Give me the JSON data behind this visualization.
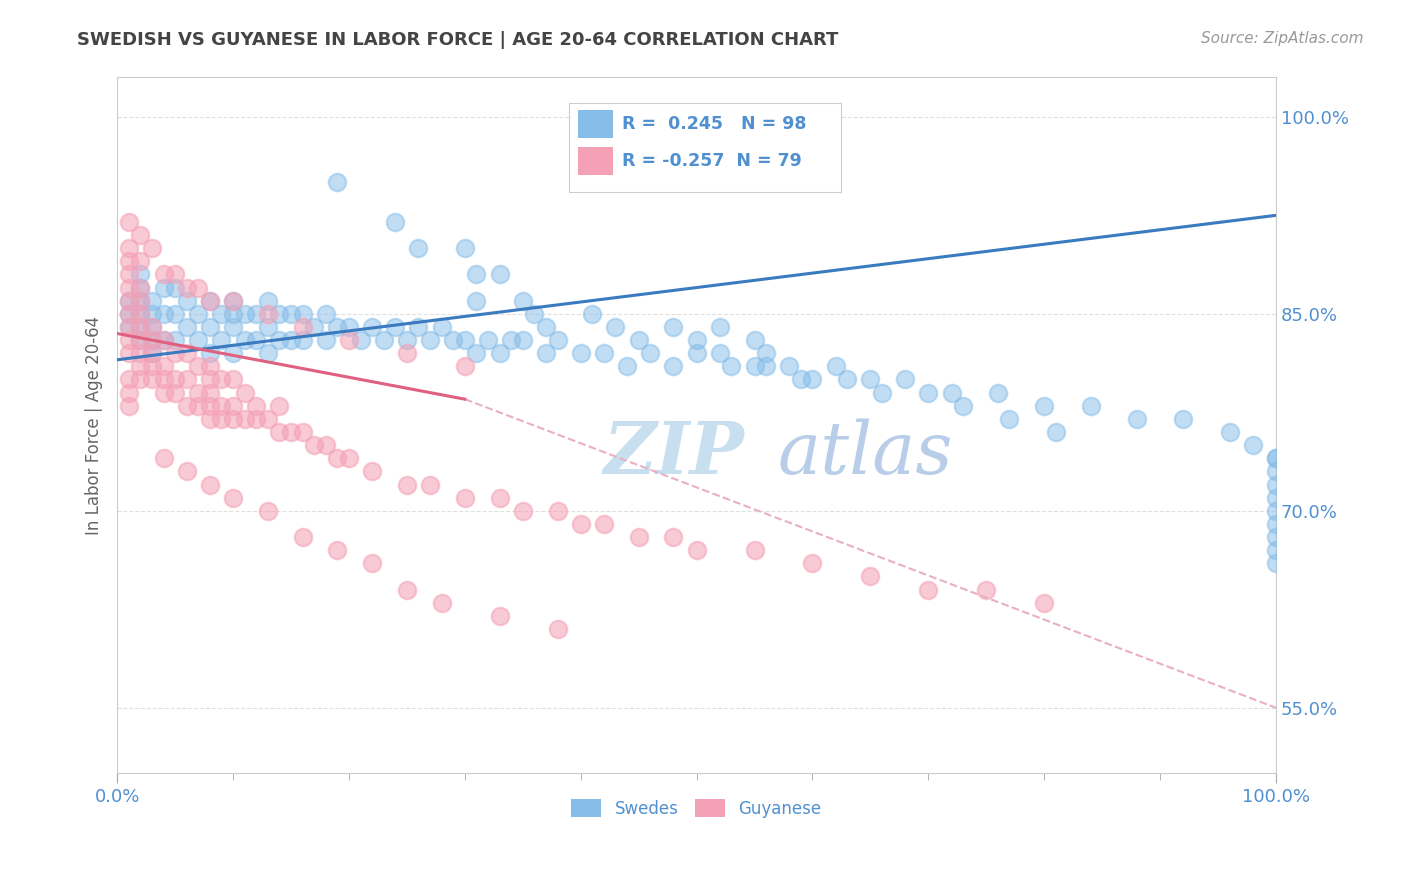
{
  "title": "SWEDISH VS GUYANESE IN LABOR FORCE | AGE 20-64 CORRELATION CHART",
  "source": "Source: ZipAtlas.com",
  "ylabel": "In Labor Force | Age 20-64",
  "xlim": [
    0.0,
    1.0
  ],
  "ylim": [
    0.5,
    1.03
  ],
  "x_tick_labels": [
    "0.0%",
    "100.0%"
  ],
  "y_ticks": [
    0.55,
    0.7,
    0.85,
    1.0
  ],
  "y_tick_labels": [
    "55.0%",
    "70.0%",
    "85.0%",
    "100.0%"
  ],
  "r_swedish": 0.245,
  "n_swedish": 98,
  "r_guyanese": -0.257,
  "n_guyanese": 79,
  "swedish_color": "#85bce8",
  "guyanese_color": "#f4a0b5",
  "trend_swedish_color": "#3a7abf",
  "trend_guyanese_color": "#e06080",
  "trend_dashed_color": "#e8b0c0",
  "watermark_zip": "ZIP",
  "watermark_atlas": "atlas",
  "watermark_color": "#c8dff0",
  "background_color": "#ffffff",
  "grid_color": "#e0e0e0",
  "grid_dashed_color": "#e8d0d8",
  "title_color": "#444444",
  "tick_label_color": "#5090d0",
  "legend_r_color": "#5090d0",
  "swedish_x": [
    0.01,
    0.01,
    0.01,
    0.02,
    0.02,
    0.02,
    0.02,
    0.02,
    0.02,
    0.03,
    0.03,
    0.03,
    0.03,
    0.03,
    0.04,
    0.04,
    0.04,
    0.05,
    0.05,
    0.05,
    0.06,
    0.06,
    0.07,
    0.07,
    0.08,
    0.08,
    0.08,
    0.09,
    0.09,
    0.1,
    0.1,
    0.1,
    0.1,
    0.11,
    0.11,
    0.12,
    0.12,
    0.13,
    0.13,
    0.13,
    0.14,
    0.14,
    0.15,
    0.15,
    0.16,
    0.16,
    0.17,
    0.18,
    0.18,
    0.19,
    0.2,
    0.21,
    0.22,
    0.23,
    0.24,
    0.25,
    0.26,
    0.27,
    0.28,
    0.29,
    0.3,
    0.31,
    0.32,
    0.33,
    0.34,
    0.35,
    0.37,
    0.38,
    0.4,
    0.42,
    0.44,
    0.46,
    0.48,
    0.5,
    0.53,
    0.56,
    0.59,
    0.62,
    0.65,
    0.68,
    0.72,
    0.76,
    0.8,
    0.84,
    0.88,
    0.92,
    0.96,
    0.98,
    1.0,
    1.0,
    1.0,
    1.0,
    1.0,
    1.0,
    1.0,
    1.0,
    1.0,
    1.0
  ],
  "swedish_y": [
    0.84,
    0.85,
    0.86,
    0.83,
    0.84,
    0.85,
    0.86,
    0.87,
    0.88,
    0.82,
    0.83,
    0.84,
    0.85,
    0.86,
    0.83,
    0.85,
    0.87,
    0.83,
    0.85,
    0.87,
    0.84,
    0.86,
    0.83,
    0.85,
    0.82,
    0.84,
    0.86,
    0.83,
    0.85,
    0.82,
    0.84,
    0.85,
    0.86,
    0.83,
    0.85,
    0.83,
    0.85,
    0.82,
    0.84,
    0.86,
    0.83,
    0.85,
    0.83,
    0.85,
    0.83,
    0.85,
    0.84,
    0.83,
    0.85,
    0.84,
    0.84,
    0.83,
    0.84,
    0.83,
    0.84,
    0.83,
    0.84,
    0.83,
    0.84,
    0.83,
    0.83,
    0.82,
    0.83,
    0.82,
    0.83,
    0.83,
    0.82,
    0.83,
    0.82,
    0.82,
    0.81,
    0.82,
    0.81,
    0.82,
    0.81,
    0.81,
    0.8,
    0.81,
    0.8,
    0.8,
    0.79,
    0.79,
    0.78,
    0.78,
    0.77,
    0.77,
    0.76,
    0.75,
    0.74,
    0.74,
    0.73,
    0.72,
    0.71,
    0.7,
    0.69,
    0.68,
    0.67,
    0.66
  ],
  "swedish_outlier_x": [
    0.19,
    0.24,
    0.26,
    0.3,
    0.31,
    0.31,
    0.33,
    0.35,
    0.36,
    0.37,
    0.41,
    0.43,
    0.45,
    0.48,
    0.5,
    0.52,
    0.52,
    0.55,
    0.55,
    0.56,
    0.58,
    0.6,
    0.63,
    0.66,
    0.7,
    0.73,
    0.77,
    0.81
  ],
  "swedish_outlier_y": [
    0.95,
    0.92,
    0.9,
    0.9,
    0.88,
    0.86,
    0.88,
    0.86,
    0.85,
    0.84,
    0.85,
    0.84,
    0.83,
    0.84,
    0.83,
    0.84,
    0.82,
    0.83,
    0.81,
    0.82,
    0.81,
    0.8,
    0.8,
    0.79,
    0.79,
    0.78,
    0.77,
    0.76
  ],
  "guyanese_x": [
    0.01,
    0.01,
    0.01,
    0.01,
    0.01,
    0.01,
    0.01,
    0.01,
    0.01,
    0.01,
    0.01,
    0.02,
    0.02,
    0.02,
    0.02,
    0.02,
    0.02,
    0.02,
    0.02,
    0.03,
    0.03,
    0.03,
    0.03,
    0.03,
    0.04,
    0.04,
    0.04,
    0.04,
    0.05,
    0.05,
    0.05,
    0.06,
    0.06,
    0.06,
    0.07,
    0.07,
    0.07,
    0.08,
    0.08,
    0.08,
    0.08,
    0.08,
    0.09,
    0.09,
    0.09,
    0.1,
    0.1,
    0.1,
    0.11,
    0.11,
    0.12,
    0.12,
    0.13,
    0.14,
    0.14,
    0.15,
    0.16,
    0.17,
    0.18,
    0.19,
    0.2,
    0.22,
    0.25,
    0.27,
    0.3,
    0.33,
    0.35,
    0.38,
    0.4,
    0.42,
    0.45,
    0.48,
    0.5,
    0.55,
    0.6,
    0.65,
    0.7,
    0.75,
    0.8
  ],
  "guyanese_y": [
    0.82,
    0.83,
    0.84,
    0.85,
    0.86,
    0.87,
    0.88,
    0.89,
    0.78,
    0.79,
    0.8,
    0.8,
    0.81,
    0.82,
    0.83,
    0.84,
    0.85,
    0.86,
    0.87,
    0.8,
    0.81,
    0.82,
    0.83,
    0.84,
    0.79,
    0.8,
    0.81,
    0.83,
    0.79,
    0.8,
    0.82,
    0.78,
    0.8,
    0.82,
    0.78,
    0.79,
    0.81,
    0.77,
    0.78,
    0.79,
    0.8,
    0.81,
    0.77,
    0.78,
    0.8,
    0.77,
    0.78,
    0.8,
    0.77,
    0.79,
    0.77,
    0.78,
    0.77,
    0.76,
    0.78,
    0.76,
    0.76,
    0.75,
    0.75,
    0.74,
    0.74,
    0.73,
    0.72,
    0.72,
    0.71,
    0.71,
    0.7,
    0.7,
    0.69,
    0.69,
    0.68,
    0.68,
    0.67,
    0.67,
    0.66,
    0.65,
    0.64,
    0.64,
    0.63
  ],
  "guyanese_high_x": [
    0.01,
    0.01,
    0.02,
    0.02,
    0.03,
    0.04,
    0.05,
    0.06,
    0.07,
    0.08,
    0.1,
    0.13,
    0.16,
    0.2,
    0.25,
    0.3
  ],
  "guyanese_high_y": [
    0.92,
    0.9,
    0.91,
    0.89,
    0.9,
    0.88,
    0.88,
    0.87,
    0.87,
    0.86,
    0.86,
    0.85,
    0.84,
    0.83,
    0.82,
    0.81
  ],
  "guyanese_low_x": [
    0.04,
    0.06,
    0.08,
    0.1,
    0.13,
    0.16,
    0.19,
    0.22,
    0.25,
    0.28,
    0.33,
    0.38
  ],
  "guyanese_low_y": [
    0.74,
    0.73,
    0.72,
    0.71,
    0.7,
    0.68,
    0.67,
    0.66,
    0.64,
    0.63,
    0.62,
    0.61
  ],
  "trend_sw_x0": 0.0,
  "trend_sw_y0": 0.815,
  "trend_sw_x1": 1.0,
  "trend_sw_y1": 0.925,
  "trend_gy_solid_x0": 0.0,
  "trend_gy_solid_y0": 0.835,
  "trend_gy_solid_x1": 0.3,
  "trend_gy_solid_y1": 0.785,
  "trend_gy_dash_x0": 0.3,
  "trend_gy_dash_y0": 0.785,
  "trend_gy_dash_x1": 1.0,
  "trend_gy_dash_y1": 0.55
}
